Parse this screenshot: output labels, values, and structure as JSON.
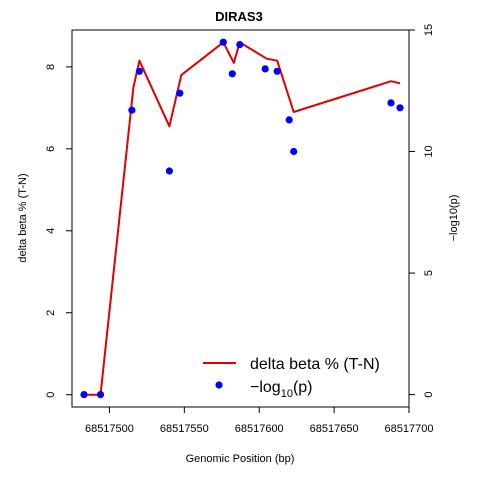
{
  "chart_data": {
    "type": "line",
    "title": "DIRAS3",
    "xlabel": "Genomic Position (bp)",
    "ylabel_left": "delta beta % (T-N)",
    "ylabel_right": "−log10(p)",
    "xlim": [
      68517475,
      68517700
    ],
    "ylim_left": [
      -0.3,
      8.9
    ],
    "ylim_right": [
      -0.51,
      15.0
    ],
    "x_ticks": [
      68517500,
      68517550,
      68517600,
      68517650,
      68517700
    ],
    "x_tick_labels": [
      "68517500",
      "68517550",
      "68517600",
      "68517650",
      "68517700"
    ],
    "y_left_ticks": [
      0,
      2,
      4,
      6,
      8
    ],
    "y_left_tick_labels": [
      "0",
      "2",
      "4",
      "6",
      "8"
    ],
    "y_right_ticks": [
      0,
      5,
      10,
      15
    ],
    "y_right_tick_labels": [
      "0",
      "5",
      "10",
      "15"
    ],
    "series": [
      {
        "name": "delta beta % (T-N)",
        "kind": "line",
        "axis": "left",
        "color": "#e00000",
        "x": [
          68517483,
          68517494,
          68517516,
          68517520,
          68517540,
          68517548,
          68517576,
          68517583,
          68517587,
          68517605,
          68517612,
          68517623,
          68517688,
          68517694
        ],
        "y": [
          0.0,
          0.0,
          7.5,
          8.15,
          6.55,
          7.8,
          8.6,
          8.1,
          8.6,
          8.2,
          8.15,
          6.9,
          7.65,
          7.6
        ]
      },
      {
        "name": "−log10(p)",
        "kind": "points",
        "axis": "right",
        "color": "#0000ff",
        "x": [
          68517483,
          68517494,
          68517515,
          68517520,
          68517540,
          68517547,
          68517576,
          68517582,
          68517587,
          68517604,
          68517612,
          68517620,
          68517623,
          68517688,
          68517694
        ],
        "y": [
          0.0,
          0.0,
          11.7,
          13.3,
          9.2,
          12.4,
          14.5,
          13.2,
          14.4,
          13.4,
          13.3,
          11.3,
          10.0,
          12.0,
          11.8
        ]
      }
    ],
    "legend": {
      "position": "bottom-right",
      "line_label": "delta beta % (T-N)",
      "point_label_prefix": "−log",
      "point_label_sub": "10",
      "point_label_suffix": "(p)"
    }
  }
}
